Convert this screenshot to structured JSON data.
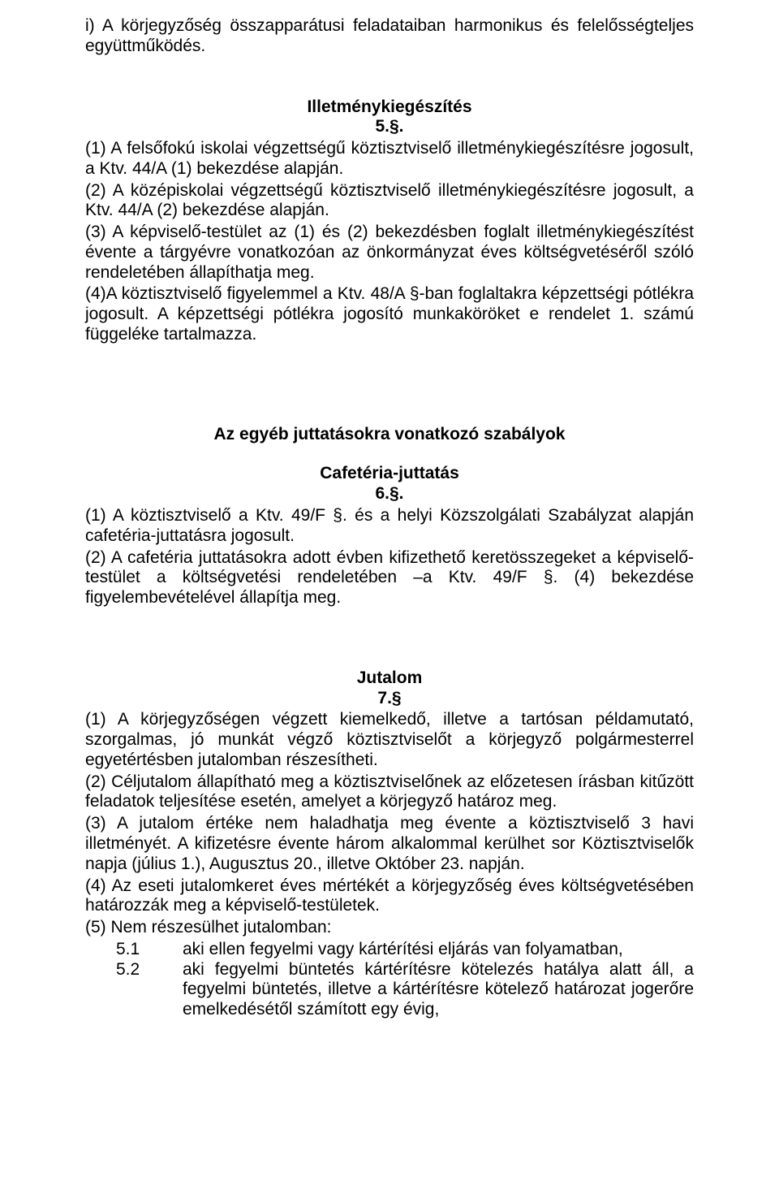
{
  "colors": {
    "text": "#000000",
    "background": "#ffffff"
  },
  "typography": {
    "font_family": "Arial",
    "font_size_pt": 16,
    "line_height": 1.18,
    "heading_weight": "bold"
  },
  "sec_i": {
    "text": "i) A körjegyzőség összapparátusi feladataiban harmonikus és felelősségteljes együttműködés."
  },
  "sec5": {
    "title": "Illetménykiegészítés",
    "num": "5.§.",
    "p1": "(1) A felsőfokú iskolai végzettségű köztisztviselő illetménykiegészítésre jogosult, a Ktv. 44/A (1) bekezdése alapján.",
    "p2": "(2) A középiskolai végzettségű köztisztviselő illetménykiegészítésre jogosult, a Ktv. 44/A (2) bekezdése alapján.",
    "p3": "(3) A képviselő-testület az (1) és (2) bekezdésben foglalt illetménykiegészítést évente a tárgyévre vonatkozóan az önkormányzat éves költségvetéséről szóló rendeletében állapíthatja meg.",
    "p4": "(4)A köztisztviselő figyelemmel a Ktv. 48/A §-ban foglaltakra képzettségi pótlékra jogosult. A képzettségi pótlékra jogosító munkaköröket e rendelet 1. számú függeléke tartalmazza."
  },
  "sec_rules": {
    "title": "Az egyéb juttatásokra vonatkozó szabályok"
  },
  "sec6": {
    "title": "Cafetéria-juttatás",
    "num": "6.§.",
    "p1": "(1) A köztisztviselő a Ktv. 49/F §. és a helyi Közszolgálati Szabályzat alapján cafetéria-juttatásra jogosult.",
    "p2": "(2) A cafetéria juttatásokra adott évben kifizethető keretösszegeket a képviselő-testület a költségvetési rendeletében –a Ktv. 49/F §. (4) bekezdése figyelembevételével állapítja meg."
  },
  "sec7": {
    "title": "Jutalom",
    "num": "7.§",
    "p1": "(1) A körjegyzőségen végzett kiemelkedő, illetve a tartósan példamutató, szorgalmas, jó munkát végző köztisztviselőt a körjegyző polgármesterrel egyetértésben jutalomban részesítheti.",
    "p2": "(2) Céljutalom állapítható meg a köztisztviselőnek az előzetesen írásban kitűzött feladatok teljesítése esetén, amelyet a körjegyző határoz meg.",
    "p3": "(3) A jutalom értéke nem haladhatja meg évente a köztisztviselő 3 havi illetményét. A kifizetésre évente három alkalommal kerülhet sor Köztisztviselők napja (július 1.), Augusztus 20., illetve Október 23. napján.",
    "p4": "(4) Az eseti jutalomkeret éves mértékét a körjegyzőség éves költségvetésében határozzák meg a képviselő-testületek.",
    "p5": "(5) Nem részesülhet jutalomban:",
    "p5_1_num": "5.1",
    "p5_1_text": "aki ellen fegyelmi vagy kártérítési eljárás van folyamatban,",
    "p5_2_num": "5.2",
    "p5_2_text": "aki fegyelmi büntetés kártérítésre kötelezés hatálya alatt áll, a fegyelmi büntetés, illetve a kártérítésre kötelező határozat jogerőre emelkedésétől számított egy évig,"
  }
}
